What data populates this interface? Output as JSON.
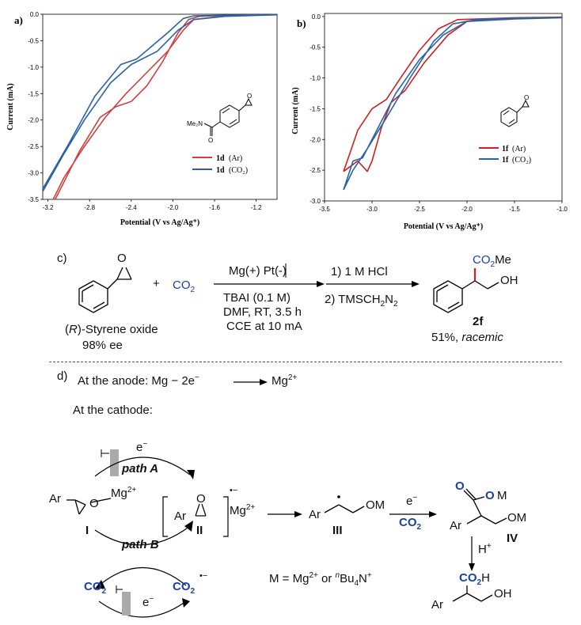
{
  "chart_data": [
    {
      "type": "line",
      "panel_label": "a)",
      "xlabel": "Potential (V vs Ag/Ag⁺)",
      "ylabel": "Current (mA)",
      "xlim": [
        -3.25,
        -1.0
      ],
      "ylim": [
        -3.5,
        0.0
      ],
      "x_ticks": [
        "-3.2",
        "-2.8",
        "-2.4",
        "-2.0",
        "-1.6",
        "-1.2"
      ],
      "y_ticks": [
        "0.0",
        "-0.5",
        "-1.0",
        "-1.5",
        "-2.0",
        "-2.5",
        "-3.0",
        "-3.5"
      ],
      "molecule_label": "Me₂N",
      "legend": [
        {
          "compound": "1d",
          "condition": "(Ar)",
          "color": "#d04040"
        },
        {
          "compound": "1d",
          "condition": "(CO₂)",
          "color": "#2a62a8"
        }
      ],
      "series": [
        {
          "name": "1d (Ar)",
          "color": "#d04040",
          "points": [
            [
              -3.13,
              -3.5
            ],
            [
              -2.9,
              -2.6
            ],
            [
              -2.7,
              -1.95
            ],
            [
              -2.55,
              -1.75
            ],
            [
              -2.4,
              -1.65
            ],
            [
              -2.25,
              -1.35
            ],
            [
              -2.1,
              -0.9
            ],
            [
              -1.95,
              -0.35
            ],
            [
              -1.85,
              -0.1
            ],
            [
              -1.75,
              -0.04
            ],
            [
              -1.5,
              -0.02
            ],
            [
              -1.0,
              -0.01
            ],
            [
              -1.5,
              -0.03
            ],
            [
              -1.8,
              -0.1
            ],
            [
              -1.9,
              -0.3
            ],
            [
              -2.05,
              -0.7
            ],
            [
              -2.25,
              -1.1
            ],
            [
              -2.45,
              -1.5
            ],
            [
              -2.65,
              -1.95
            ],
            [
              -2.85,
              -2.5
            ],
            [
              -3.05,
              -3.1
            ],
            [
              -3.15,
              -3.5
            ]
          ]
        },
        {
          "name": "1d (CO₂)",
          "color": "#2a62a8",
          "points": [
            [
              -3.25,
              -3.3
            ],
            [
              -3.0,
              -2.45
            ],
            [
              -2.75,
              -1.55
            ],
            [
              -2.5,
              -0.95
            ],
            [
              -2.35,
              -0.85
            ],
            [
              -2.2,
              -0.6
            ],
            [
              -2.05,
              -0.35
            ],
            [
              -1.9,
              -0.08
            ],
            [
              -1.8,
              -0.03
            ],
            [
              -1.5,
              -0.02
            ],
            [
              -1.0,
              -0.01
            ],
            [
              -1.5,
              -0.04
            ],
            [
              -1.8,
              -0.1
            ],
            [
              -1.95,
              -0.3
            ],
            [
              -2.15,
              -0.7
            ],
            [
              -2.4,
              -0.95
            ],
            [
              -2.6,
              -1.3
            ],
            [
              -2.85,
              -2.0
            ],
            [
              -3.05,
              -2.65
            ],
            [
              -3.25,
              -3.35
            ]
          ]
        }
      ]
    },
    {
      "type": "line",
      "panel_label": "b)",
      "xlabel": "Potential (V vs Ag/Ag⁺)",
      "ylabel": "Current (mA)",
      "xlim": [
        -3.5,
        -1.0
      ],
      "ylim": [
        -3.0,
        0.05
      ],
      "x_ticks": [
        "-3.5",
        "-3.0",
        "-2.5",
        "-2.0",
        "-1.5",
        "-1.0"
      ],
      "y_ticks": [
        "0.0",
        "-0.5",
        "-1.0",
        "-1.5",
        "-2.0",
        "-2.5",
        "-3.0"
      ],
      "legend": [
        {
          "compound": "1f",
          "condition": "(Ar)",
          "color": "#d02020"
        },
        {
          "compound": "1f",
          "condition": "(CO₂)",
          "color": "#2a62a8"
        }
      ],
      "series": [
        {
          "name": "1f (Ar)",
          "color": "#d02020",
          "points": [
            [
              -3.3,
              -2.52
            ],
            [
              -3.25,
              -2.3
            ],
            [
              -3.15,
              -1.85
            ],
            [
              -3.0,
              -1.5
            ],
            [
              -2.85,
              -1.35
            ],
            [
              -2.7,
              -1.0
            ],
            [
              -2.5,
              -0.55
            ],
            [
              -2.3,
              -0.2
            ],
            [
              -2.1,
              -0.05
            ],
            [
              -1.5,
              -0.02
            ],
            [
              -1.0,
              -0.01
            ],
            [
              -1.5,
              -0.03
            ],
            [
              -2.0,
              -0.08
            ],
            [
              -2.2,
              -0.3
            ],
            [
              -2.45,
              -0.75
            ],
            [
              -2.65,
              -1.2
            ],
            [
              -2.8,
              -1.4
            ],
            [
              -2.9,
              -1.8
            ],
            [
              -3.0,
              -2.35
            ],
            [
              -3.05,
              -2.52
            ],
            [
              -3.15,
              -2.35
            ],
            [
              -3.3,
              -2.52
            ]
          ]
        },
        {
          "name": "1f (CO₂)",
          "color": "#2a62a8",
          "points": [
            [
              -3.3,
              -2.82
            ],
            [
              -3.2,
              -2.5
            ],
            [
              -3.05,
              -2.15
            ],
            [
              -2.85,
              -1.65
            ],
            [
              -2.6,
              -1.0
            ],
            [
              -2.35,
              -0.4
            ],
            [
              -2.15,
              -0.12
            ],
            [
              -1.9,
              -0.05
            ],
            [
              -1.5,
              -0.03
            ],
            [
              -1.0,
              -0.02
            ],
            [
              -1.5,
              -0.04
            ],
            [
              -2.0,
              -0.08
            ],
            [
              -2.25,
              -0.3
            ],
            [
              -2.5,
              -0.7
            ],
            [
              -2.75,
              -1.25
            ],
            [
              -2.95,
              -1.85
            ],
            [
              -3.1,
              -2.3
            ],
            [
              -3.2,
              -2.35
            ],
            [
              -3.3,
              -2.82
            ]
          ]
        }
      ]
    }
  ],
  "scheme_c": {
    "label": "c)",
    "reagent_co2": "CO",
    "reagent_co2_sub": "2",
    "plus": "+",
    "electrodes": "Mg(+)",
    "electrodes2": "Pt(-)",
    "conditions": [
      "TBAI (0.1 M)",
      "DMF, RT, 3.5 h",
      "CCE at 10 mA"
    ],
    "step1": "1) 1 M HCl",
    "step2": "2) TMSCH",
    "step2_sub1": "2",
    "step2_n": "N",
    "step2_sub2": "2",
    "sm_name_pre": "(",
    "sm_name_r": "R",
    "sm_name_post": ")-Styrene oxide",
    "sm_ee": "98% ee",
    "product_co2me": "CO",
    "product_co2me_sub": "2",
    "product_co2me_post": "Me",
    "product_oh": "OH",
    "product_id": "2f",
    "product_yield": "51%, ",
    "product_racemic": "racemic"
  },
  "scheme_d": {
    "label": "d)",
    "anode_text": "At the anode: Mg − 2e",
    "anode_sup": "−",
    "anode_product": "Mg",
    "anode_product_sup": "2+",
    "cathode_text": "At the cathode:",
    "path_a": "path A",
    "path_b": "path B",
    "electron": "e",
    "electron_sup": "−",
    "ar": "Ar",
    "o": "O",
    "mg2": "Mg",
    "mg2_sup": "2+",
    "cpd_I": "I",
    "cpd_II": "II",
    "cpd_III": "III",
    "cpd_IV": "IV",
    "radical_sup": "•−",
    "om": "OM",
    "co2": "CO",
    "co2_sub": "2",
    "m_def": "M = Mg",
    "m_def_sup": "2+",
    "m_def_or": " or ",
    "m_def_n": "n",
    "m_def_bu": "Bu",
    "m_def_4": "4",
    "m_def_end": "N",
    "m_def_plus": "+",
    "h_plus": "H",
    "h_plus_sup": "+",
    "co2h": "CO",
    "co2h_sub": "2",
    "co2h_post": "H",
    "oh": "OH",
    "m_letter": "M"
  }
}
